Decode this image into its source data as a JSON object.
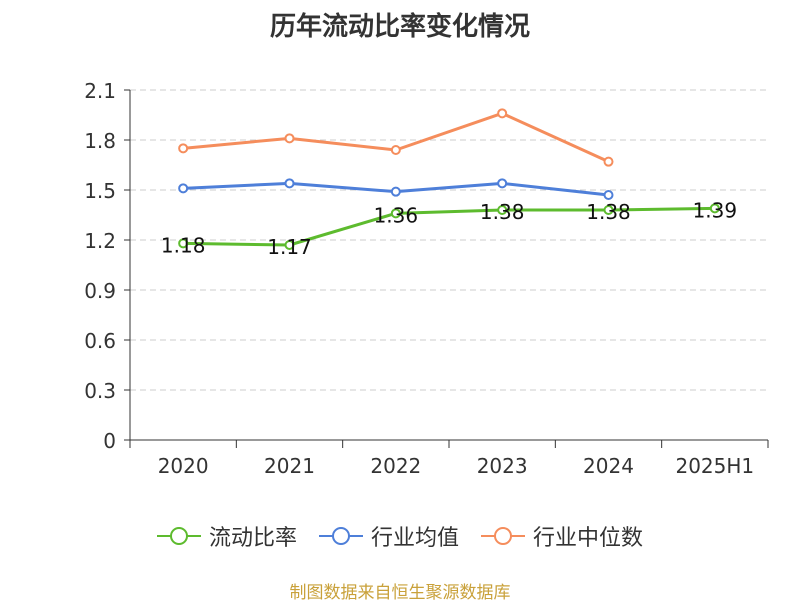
{
  "chart_data": {
    "type": "line",
    "title": "历年流动比率变化情况",
    "categories": [
      "2020",
      "2021",
      "2022",
      "2023",
      "2024",
      "2025H1"
    ],
    "ylim": [
      0,
      2.1
    ],
    "yticks": [
      "0",
      "0.3",
      "0.6",
      "0.9",
      "1.2",
      "1.5",
      "1.8",
      "2.1"
    ],
    "grid": true,
    "legend_position": "bottom",
    "series": [
      {
        "name": "流动比率",
        "color": "#5dbb2e",
        "values": [
          1.18,
          1.17,
          1.36,
          1.38,
          1.38,
          1.39
        ],
        "labels": [
          "1.18",
          "1.17",
          "1.36",
          "1.38",
          "1.38",
          "1.39"
        ]
      },
      {
        "name": "行业均值",
        "color": "#4e7fd9",
        "values": [
          1.51,
          1.54,
          1.49,
          1.54,
          1.47,
          null
        ]
      },
      {
        "name": "行业中位数",
        "color": "#f58d5c",
        "values": [
          1.75,
          1.81,
          1.74,
          1.96,
          1.67,
          null
        ]
      }
    ],
    "source": "制图数据来自恒生聚源数据库"
  }
}
